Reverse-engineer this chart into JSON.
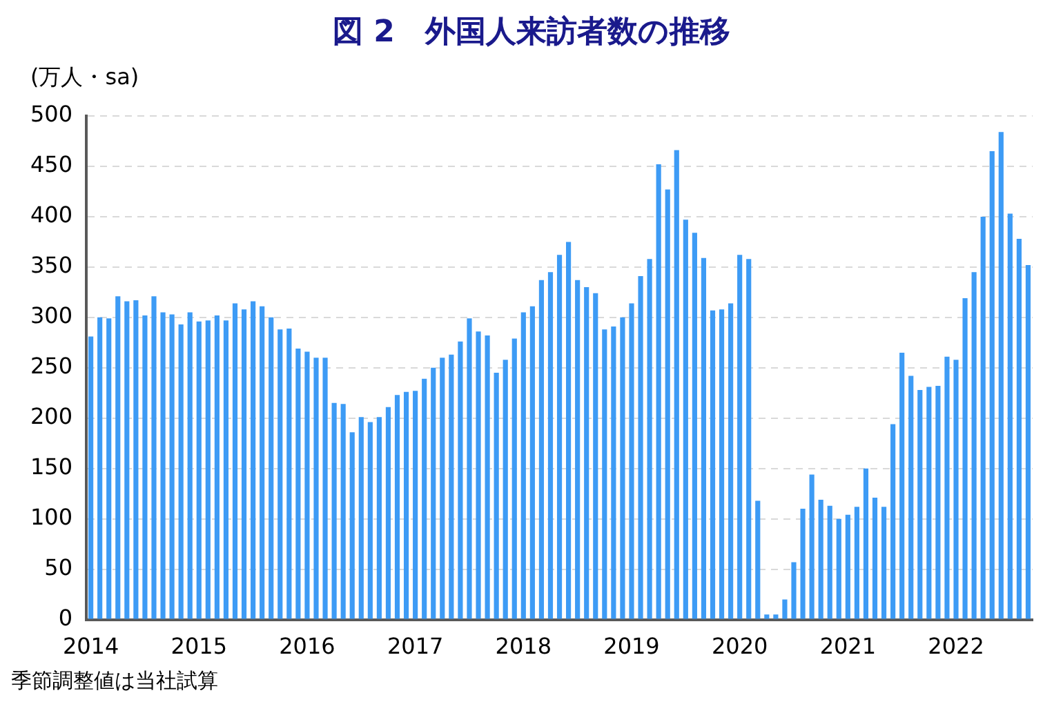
{
  "chart_data": {
    "type": "bar",
    "title": "図 2　外国人来訪者数の推移",
    "ylabel": "(万人・sa)",
    "annotations": [
      "季節調整値は当社試算"
    ],
    "categories": [
      "2014",
      null,
      null,
      null,
      null,
      null,
      null,
      null,
      null,
      null,
      null,
      null,
      "2015",
      null,
      null,
      null,
      null,
      null,
      null,
      null,
      null,
      null,
      null,
      null,
      "2016",
      null,
      null,
      null,
      null,
      null,
      null,
      null,
      null,
      null,
      null,
      null,
      "2017",
      null,
      null,
      null,
      null,
      null,
      null,
      null,
      null,
      null,
      null,
      null,
      "2018",
      null,
      null,
      null,
      null,
      null,
      null,
      null,
      null,
      null,
      null,
      null,
      "2019",
      null,
      null,
      null,
      null,
      null,
      null,
      null,
      null,
      null,
      null,
      null,
      "2020",
      null,
      null,
      null,
      null,
      null,
      null,
      null,
      null,
      null,
      null,
      null,
      "2021",
      null,
      null,
      null,
      null,
      null,
      null,
      null,
      null,
      null,
      null,
      null,
      "2022",
      null,
      null,
      null,
      null,
      null,
      null,
      null,
      null
    ],
    "values": [
      281,
      300,
      299,
      321,
      316,
      317,
      302,
      321,
      305,
      303,
      293,
      305,
      296,
      297,
      302,
      297,
      314,
      308,
      316,
      311,
      300,
      288,
      289,
      269,
      266,
      260,
      260,
      215,
      214,
      186,
      201,
      196,
      201,
      211,
      223,
      226,
      227,
      239,
      250,
      260,
      263,
      276,
      299,
      286,
      282,
      245,
      258,
      279,
      305,
      311,
      337,
      345,
      362,
      375,
      337,
      330,
      324,
      288,
      291,
      300,
      314,
      341,
      358,
      452,
      427,
      466,
      397,
      384,
      359,
      307,
      308,
      314,
      362,
      358,
      118,
      5,
      5,
      20,
      57,
      110,
      144,
      119,
      113,
      100,
      104,
      112,
      150,
      121,
      112,
      194,
      265,
      242,
      228,
      231,
      232,
      261,
      258,
      319,
      345,
      400,
      465,
      484,
      403,
      378,
      352
    ],
    "color": "#3d9bf5",
    "ylim": [
      0,
      500
    ],
    "yticks": [
      0,
      50,
      100,
      150,
      200,
      250,
      300,
      350,
      400,
      450,
      500
    ],
    "grid": "y"
  }
}
